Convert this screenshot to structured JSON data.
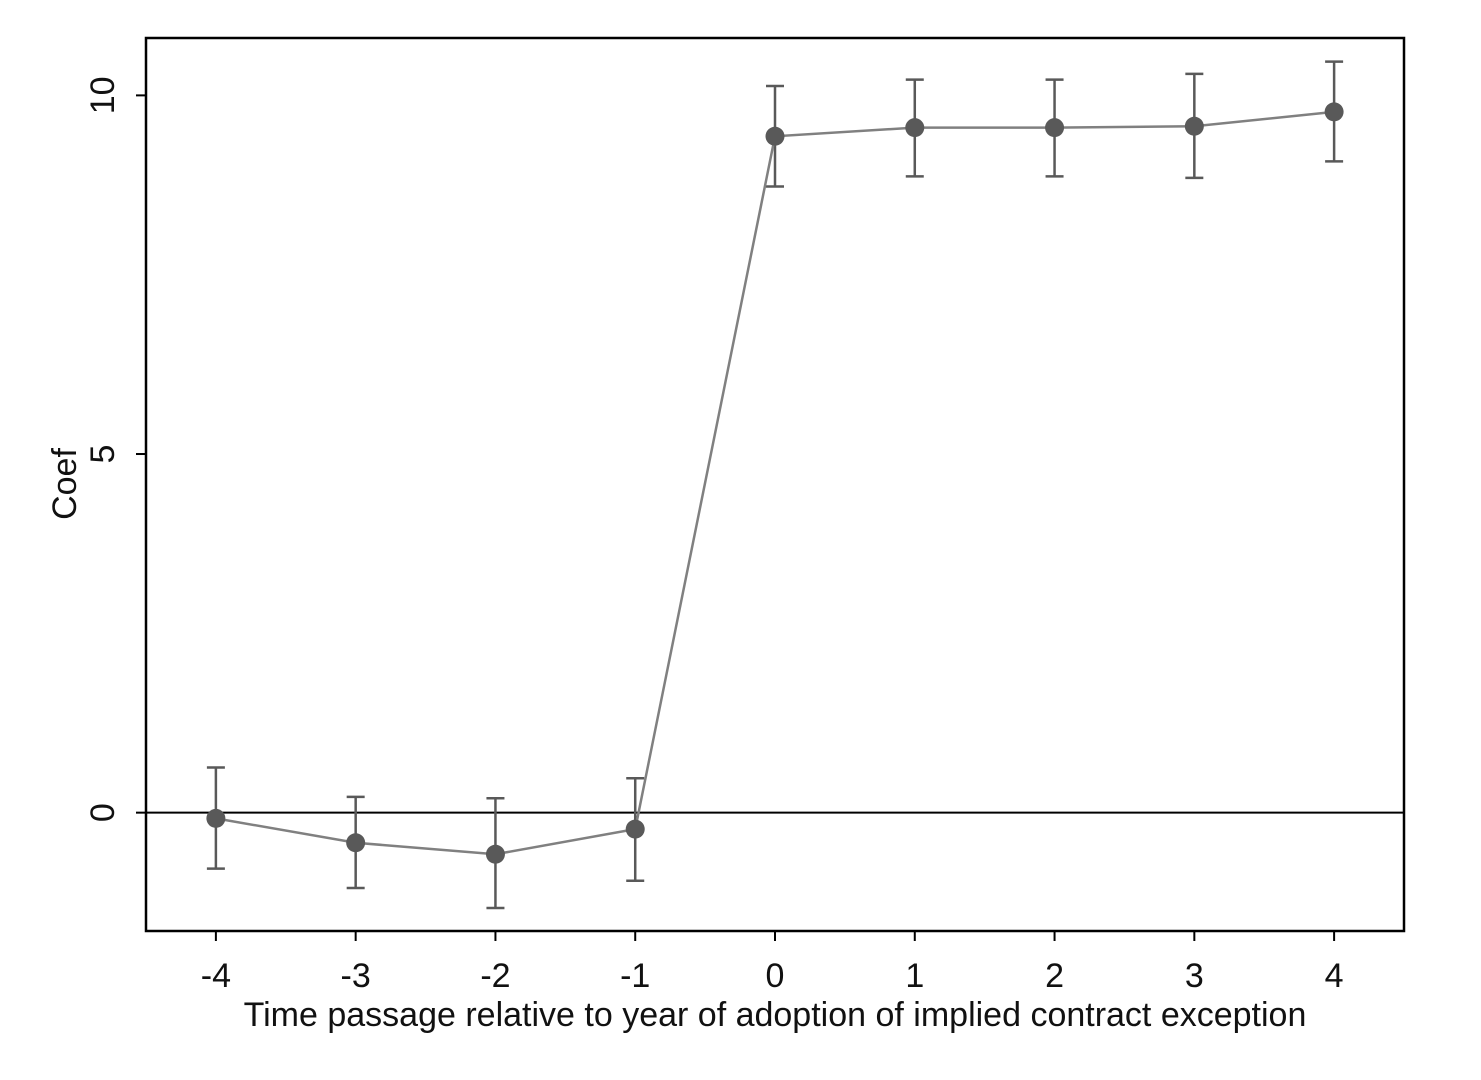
{
  "chart_data": {
    "type": "scatter",
    "title": "",
    "xlabel": "Time passage relative to year of adoption of implied contract exception",
    "ylabel": "Coef",
    "xlim": [
      -4.5,
      4.5
    ],
    "ylim": [
      -1.65,
      10.8
    ],
    "x_ticks": [
      "-4",
      "-3",
      "-2",
      "-1",
      "0",
      "1",
      "2",
      "3",
      "4"
    ],
    "y_ticks": [
      "0",
      "5",
      "10"
    ],
    "grid": false,
    "reference_line_y": 0,
    "connected": true,
    "series": [
      {
        "x": [
          -4,
          -3,
          -2,
          -1,
          0,
          1,
          2,
          3,
          4
        ],
        "y": [
          -0.08,
          -0.42,
          -0.58,
          -0.23,
          9.43,
          9.55,
          9.55,
          9.57,
          9.77
        ],
        "ci_low": [
          -0.78,
          -1.05,
          -1.33,
          -0.95,
          8.73,
          8.87,
          8.87,
          8.85,
          9.08
        ],
        "ci_high": [
          0.63,
          0.22,
          0.2,
          0.48,
          10.13,
          10.22,
          10.22,
          10.3,
          10.47
        ]
      }
    ],
    "colors": {
      "marker": "#595959",
      "line": "#808080",
      "errorbar": "#595959",
      "frame": "#000000"
    }
  }
}
